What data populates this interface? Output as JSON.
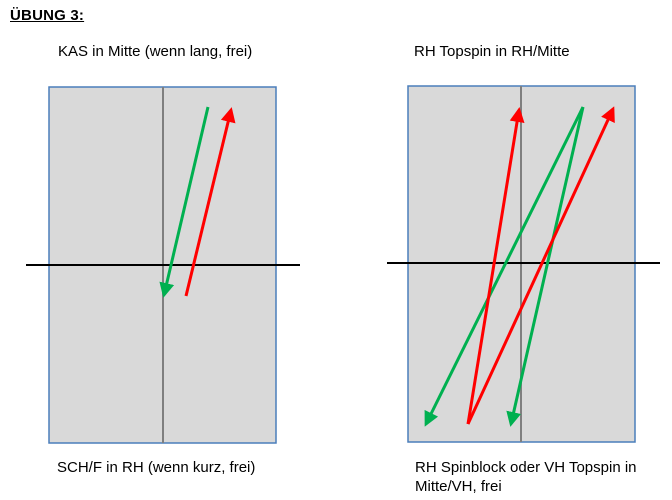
{
  "title": "ÜBUNG 3:",
  "left_diagram": {
    "caption_top": "KAS in Mitte (wenn lang, frei)",
    "caption_bottom": "SCH/F in RH (wenn kurz, frei)"
  },
  "right_diagram": {
    "caption_top": "RH Topspin in RH/Mitte",
    "caption_bottom_line1": "RH Spinblock oder VH Topspin in",
    "caption_bottom_line2": "Mitte/VH, frei"
  },
  "colors": {
    "table_fill": "#d9d9d9",
    "table_border": "#4a7ebb",
    "center_line": "#7f7f7f",
    "net": "#000000",
    "red_arrow": "#ff0000",
    "green_arrow": "#00b050"
  }
}
